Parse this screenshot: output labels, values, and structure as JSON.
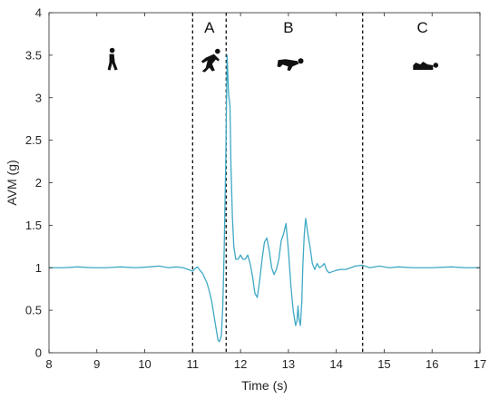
{
  "chart_data": {
    "type": "line",
    "xlabel": "Time (s)",
    "ylabel": "AVM (g)",
    "xlim": [
      8,
      17
    ],
    "ylim": [
      0,
      4
    ],
    "xticks": [
      "8",
      "9",
      "10",
      "11",
      "12",
      "13",
      "14",
      "15",
      "16",
      "17"
    ],
    "yticks": [
      "0",
      "0.5",
      "1",
      "1.5",
      "2",
      "2.5",
      "3",
      "3.5",
      "4"
    ],
    "line_color": "#3fa9c4",
    "grid": false,
    "boundaries": [
      11.0,
      11.7,
      14.55
    ],
    "phases": [
      {
        "label": "A",
        "x": 11.35
      },
      {
        "label": "B",
        "x": 13.0
      },
      {
        "label": "C",
        "x": 15.8
      }
    ],
    "icons": [
      {
        "name": "walking-person-icon",
        "x": 9.3,
        "y": 3.45
      },
      {
        "name": "falling-person-icon",
        "x": 11.35,
        "y": 3.45
      },
      {
        "name": "impact-person-icon",
        "x": 13.05,
        "y": 3.4
      },
      {
        "name": "lying-person-icon",
        "x": 15.85,
        "y": 3.35
      }
    ],
    "series": [
      {
        "x": [
          8.0,
          8.3,
          8.6,
          8.9,
          9.2,
          9.5,
          9.8,
          10.1,
          10.3,
          10.5,
          10.65,
          10.8,
          10.9,
          11.0,
          11.05,
          11.1,
          11.15,
          11.2,
          11.25,
          11.3,
          11.35,
          11.4,
          11.45,
          11.5,
          11.53,
          11.56,
          11.6,
          11.63,
          11.66,
          11.69,
          11.72,
          11.75,
          11.78,
          11.8,
          11.83,
          11.86,
          11.9,
          11.95,
          12.0,
          12.05,
          12.1,
          12.15,
          12.2,
          12.25,
          12.3,
          12.35,
          12.4,
          12.45,
          12.5,
          12.55,
          12.6,
          12.65,
          12.7,
          12.75,
          12.8,
          12.85,
          12.9,
          12.95,
          13.0,
          13.05,
          13.1,
          13.15,
          13.18,
          13.2,
          13.22,
          13.25,
          13.28,
          13.3,
          13.33,
          13.36,
          13.4,
          13.45,
          13.5,
          13.55,
          13.6,
          13.65,
          13.7,
          13.75,
          13.8,
          13.85,
          13.9,
          14.0,
          14.1,
          14.2,
          14.3,
          14.4,
          14.55,
          14.7,
          14.9,
          15.1,
          15.3,
          15.6,
          16.0,
          16.4,
          16.7,
          17.0
        ],
        "y": [
          1.0,
          1.0,
          1.01,
          1.0,
          1.0,
          1.01,
          1.0,
          1.01,
          1.02,
          1.0,
          1.01,
          1.0,
          0.98,
          0.96,
          0.99,
          1.01,
          0.97,
          0.94,
          0.88,
          0.82,
          0.72,
          0.6,
          0.42,
          0.25,
          0.15,
          0.13,
          0.2,
          0.55,
          1.25,
          2.2,
          3.5,
          3.05,
          2.9,
          2.2,
          1.6,
          1.25,
          1.1,
          1.1,
          1.15,
          1.1,
          1.1,
          1.15,
          1.05,
          0.9,
          0.7,
          0.65,
          0.85,
          1.1,
          1.3,
          1.35,
          1.2,
          1.0,
          0.92,
          0.98,
          1.1,
          1.32,
          1.4,
          1.52,
          1.2,
          0.8,
          0.5,
          0.32,
          0.38,
          0.55,
          0.4,
          0.32,
          0.6,
          1.0,
          1.38,
          1.58,
          1.42,
          1.25,
          1.05,
          0.98,
          1.05,
          1.0,
          1.02,
          1.05,
          0.97,
          0.94,
          0.95,
          0.97,
          0.98,
          0.98,
          1.0,
          1.02,
          1.03,
          1.0,
          1.02,
          1.0,
          1.01,
          1.0,
          1.0,
          1.01,
          1.0,
          1.0
        ]
      }
    ]
  }
}
